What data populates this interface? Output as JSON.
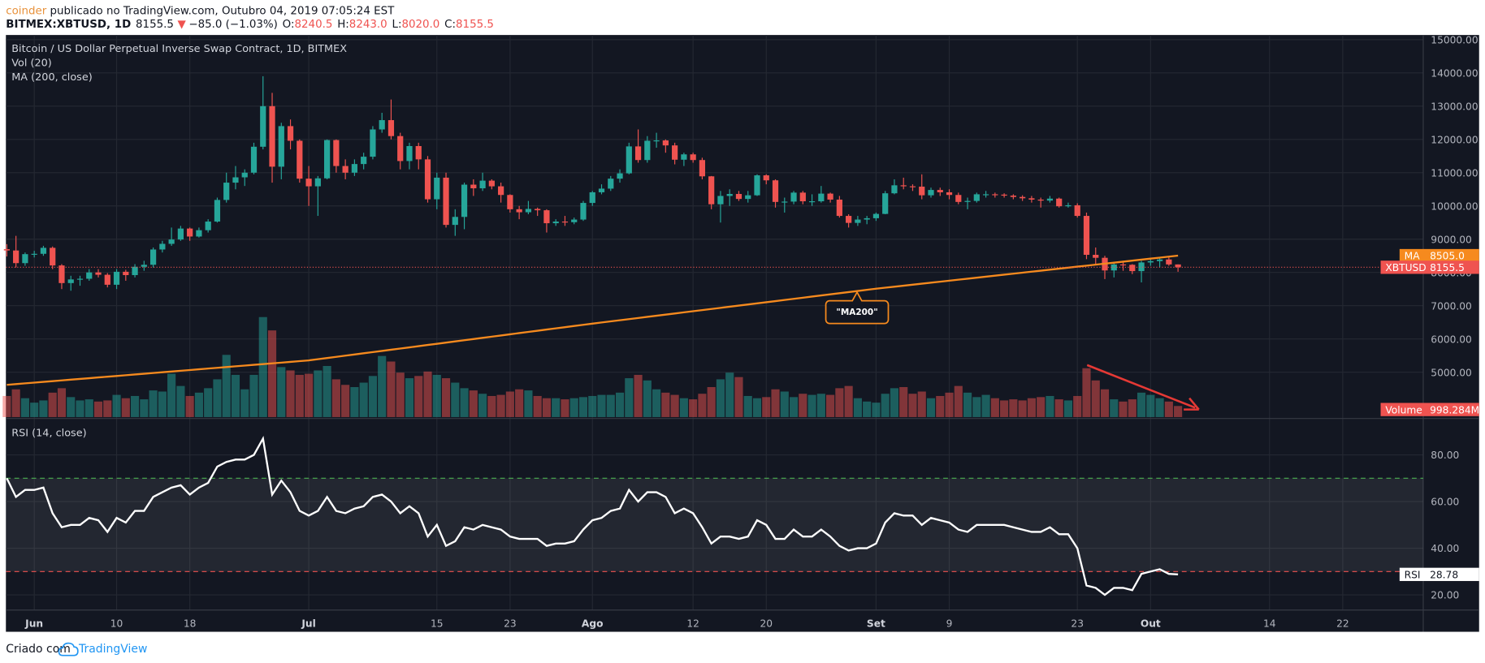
{
  "header": {
    "author": "coinder",
    "published": " publicado no TradingView.com, Outubro 04, 2019 07:05:24 EST",
    "symbol": "BITMEX:XBTUSD, 1D",
    "last": "8155.5",
    "change_arrow": "▼",
    "change": "−85.0 (−1.03%)",
    "ohlc": [
      {
        "key": "O:",
        "value": "8240.5"
      },
      {
        "key": "H:",
        "value": "8243.0"
      },
      {
        "key": "L:",
        "value": "8020.0"
      },
      {
        "key": "C:",
        "value": "8155.5"
      }
    ]
  },
  "footer": {
    "text": "Criado com",
    "brand": "TradingView"
  },
  "chart_data": {
    "type": "candlestick",
    "title": "Bitcoin / US Dollar Perpetual Inverse Swap Contract, 1D, BITMEX",
    "up_color": "#26a69a",
    "down_color": "#ef5350",
    "grid": true,
    "last_name": "XBTUSD",
    "last_label": "8155.5",
    "annotation": "\"MA200\"",
    "xlim": [
      -0.1,
      154.8
    ],
    "xticks": [
      {
        "value": 3,
        "label": "Jun"
      },
      {
        "value": 12,
        "label": "10"
      },
      {
        "value": 20,
        "label": "18"
      },
      {
        "value": 33,
        "label": "Jul"
      },
      {
        "value": 47,
        "label": "15"
      },
      {
        "value": 55,
        "label": "23"
      },
      {
        "value": 64,
        "label": "Ago"
      },
      {
        "value": 75,
        "label": "12"
      },
      {
        "value": 83,
        "label": "20"
      },
      {
        "value": 95,
        "label": "Set"
      },
      {
        "value": 103,
        "label": "9"
      },
      {
        "value": 117,
        "label": "23"
      },
      {
        "value": 125,
        "label": "Out"
      },
      {
        "value": 138,
        "label": "14"
      },
      {
        "value": 146,
        "label": "22"
      }
    ],
    "ylim": [
      3650,
      15140
    ],
    "yticks": [
      {
        "value": 15000,
        "label": "15000.00"
      },
      {
        "value": 14000,
        "label": "14000.00"
      },
      {
        "value": 13000,
        "label": "13000.00"
      },
      {
        "value": 12000,
        "label": "12000.00"
      },
      {
        "value": 11000,
        "label": "11000.00"
      },
      {
        "value": 10000,
        "label": "10000.00"
      },
      {
        "value": 9000,
        "label": "9000.00"
      },
      {
        "value": 8000,
        "label": "8000.00"
      },
      {
        "value": 7000,
        "label": "7000.00"
      },
      {
        "value": 6000,
        "label": "6000.00"
      },
      {
        "value": 5000,
        "label": "5000.00"
      }
    ],
    "candles": [
      [
        8700,
        8850,
        8480,
        8660
      ],
      [
        8660,
        9100,
        8150,
        8280
      ],
      [
        8280,
        8600,
        8200,
        8550
      ],
      [
        8550,
        8650,
        8450,
        8560
      ],
      [
        8560,
        8800,
        8500,
        8740
      ],
      [
        8740,
        8780,
        8100,
        8210
      ],
      [
        8210,
        8250,
        7500,
        7680
      ],
      [
        7680,
        7900,
        7450,
        7790
      ],
      [
        7790,
        7900,
        7600,
        7810
      ],
      [
        7810,
        8100,
        7750,
        8000
      ],
      [
        8000,
        8100,
        7850,
        7930
      ],
      [
        7930,
        7980,
        7550,
        7630
      ],
      [
        7630,
        8100,
        7500,
        8020
      ],
      [
        8020,
        8080,
        7750,
        7920
      ],
      [
        7920,
        8250,
        7850,
        8170
      ],
      [
        8170,
        8350,
        8050,
        8230
      ],
      [
        8230,
        8750,
        8150,
        8690
      ],
      [
        8690,
        8950,
        8600,
        8860
      ],
      [
        8860,
        9350,
        8800,
        8990
      ],
      [
        8990,
        9400,
        8950,
        9320
      ],
      [
        9320,
        9350,
        8950,
        9080
      ],
      [
        9080,
        9350,
        9050,
        9270
      ],
      [
        9270,
        9600,
        9200,
        9530
      ],
      [
        9530,
        10250,
        9500,
        10180
      ],
      [
        10180,
        11000,
        10100,
        10700
      ],
      [
        10700,
        11200,
        10500,
        10860
      ],
      [
        10860,
        11100,
        10600,
        11000
      ],
      [
        11000,
        11900,
        10950,
        11780
      ],
      [
        11780,
        13900,
        11700,
        13000
      ],
      [
        13000,
        13400,
        10700,
        11180
      ],
      [
        11180,
        12500,
        10800,
        12400
      ],
      [
        12400,
        12600,
        11700,
        11960
      ],
      [
        11960,
        12000,
        10700,
        10820
      ],
      [
        10820,
        11200,
        10000,
        10590
      ],
      [
        10590,
        10900,
        9700,
        10830
      ],
      [
        10830,
        12000,
        10800,
        11980
      ],
      [
        11980,
        12000,
        11000,
        11200
      ],
      [
        11200,
        11400,
        10800,
        11000
      ],
      [
        11000,
        11400,
        10900,
        11260
      ],
      [
        11260,
        11600,
        11100,
        11480
      ],
      [
        11480,
        12400,
        11400,
        12300
      ],
      [
        12300,
        12800,
        12200,
        12580
      ],
      [
        12580,
        13200,
        12000,
        12100
      ],
      [
        12100,
        12200,
        11100,
        11350
      ],
      [
        11350,
        11900,
        11100,
        11800
      ],
      [
        11800,
        11900,
        11100,
        11400
      ],
      [
        11400,
        11500,
        10100,
        10200
      ],
      [
        10200,
        11000,
        9900,
        10850
      ],
      [
        10850,
        11000,
        9350,
        9430
      ],
      [
        9430,
        9900,
        9100,
        9670
      ],
      [
        9670,
        10700,
        9300,
        10640
      ],
      [
        10640,
        10800,
        10300,
        10530
      ],
      [
        10530,
        11000,
        10450,
        10760
      ],
      [
        10760,
        10800,
        10500,
        10590
      ],
      [
        10590,
        10700,
        10100,
        10330
      ],
      [
        10330,
        10350,
        9800,
        9900
      ],
      [
        9900,
        10000,
        9600,
        9810
      ],
      [
        9810,
        10150,
        9750,
        9910
      ],
      [
        9910,
        9950,
        9700,
        9870
      ],
      [
        9870,
        9900,
        9200,
        9480
      ],
      [
        9480,
        9600,
        9400,
        9530
      ],
      [
        9530,
        9700,
        9400,
        9510
      ],
      [
        9510,
        9650,
        9450,
        9590
      ],
      [
        9590,
        10150,
        9550,
        10090
      ],
      [
        10090,
        10450,
        10000,
        10410
      ],
      [
        10410,
        10650,
        10350,
        10520
      ],
      [
        10520,
        10900,
        10450,
        10820
      ],
      [
        10820,
        11100,
        10700,
        10980
      ],
      [
        10980,
        11900,
        10950,
        11790
      ],
      [
        11790,
        12300,
        11300,
        11380
      ],
      [
        11380,
        12100,
        11300,
        11960
      ],
      [
        11960,
        12200,
        11750,
        11970
      ],
      [
        11970,
        12000,
        11600,
        11820
      ],
      [
        11820,
        11900,
        11250,
        11390
      ],
      [
        11390,
        11600,
        11200,
        11550
      ],
      [
        11550,
        11600,
        11300,
        11380
      ],
      [
        11380,
        11450,
        10800,
        10890
      ],
      [
        10890,
        10900,
        9900,
        10050
      ],
      [
        10050,
        10450,
        9500,
        10300
      ],
      [
        10300,
        10500,
        10000,
        10360
      ],
      [
        10360,
        10450,
        10150,
        10210
      ],
      [
        10210,
        10450,
        10100,
        10320
      ],
      [
        10320,
        10950,
        10300,
        10920
      ],
      [
        10920,
        10950,
        10650,
        10770
      ],
      [
        10770,
        10800,
        9950,
        10120
      ],
      [
        10120,
        10250,
        9800,
        10130
      ],
      [
        10130,
        10450,
        10050,
        10400
      ],
      [
        10400,
        10450,
        10050,
        10140
      ],
      [
        10140,
        10350,
        10000,
        10140
      ],
      [
        10140,
        10600,
        10100,
        10370
      ],
      [
        10370,
        10400,
        10100,
        10190
      ],
      [
        10190,
        10300,
        9650,
        9700
      ],
      [
        9700,
        9750,
        9350,
        9490
      ],
      [
        9490,
        9700,
        9400,
        9590
      ],
      [
        9590,
        9700,
        9450,
        9630
      ],
      [
        9630,
        9800,
        9550,
        9760
      ],
      [
        9760,
        10450,
        9750,
        10380
      ],
      [
        10380,
        10800,
        10350,
        10620
      ],
      [
        10620,
        10850,
        10500,
        10590
      ],
      [
        10590,
        10650,
        10450,
        10580
      ],
      [
        10580,
        10950,
        10200,
        10320
      ],
      [
        10320,
        10550,
        10250,
        10480
      ],
      [
        10480,
        10550,
        10300,
        10410
      ],
      [
        10410,
        10500,
        10200,
        10330
      ],
      [
        10330,
        10400,
        10050,
        10120
      ],
      [
        10120,
        10250,
        9900,
        10150
      ],
      [
        10150,
        10400,
        10100,
        10350
      ],
      [
        10350,
        10450,
        10250,
        10350
      ],
      [
        10350,
        10400,
        10250,
        10340
      ],
      [
        10340,
        10380,
        10250,
        10310
      ],
      [
        10310,
        10350,
        10200,
        10270
      ],
      [
        10270,
        10320,
        10150,
        10230
      ],
      [
        10230,
        10300,
        10100,
        10190
      ],
      [
        10190,
        10250,
        9950,
        10160
      ],
      [
        10160,
        10300,
        10100,
        10220
      ],
      [
        10220,
        10250,
        9950,
        9990
      ],
      [
        9990,
        10100,
        9950,
        10020
      ],
      [
        10020,
        10080,
        9650,
        9700
      ],
      [
        9700,
        9800,
        8400,
        8530
      ],
      [
        8530,
        8750,
        8250,
        8440
      ],
      [
        8440,
        8500,
        7800,
        8060
      ],
      [
        8060,
        8300,
        7850,
        8240
      ],
      [
        8240,
        8350,
        8050,
        8230
      ],
      [
        8230,
        8250,
        7950,
        8040
      ],
      [
        8040,
        8350,
        7700,
        8300
      ],
      [
        8300,
        8400,
        8200,
        8340
      ],
      [
        8340,
        8450,
        8150,
        8390
      ],
      [
        8390,
        8450,
        8200,
        8240.5
      ],
      [
        8240.5,
        8243,
        8020,
        8155.5
      ]
    ],
    "volume": {
      "legend": "Vol (20)",
      "name": "Volume",
      "last_label": "998.284M",
      "vlim": [
        0,
        12000
      ],
      "values": [
        1900,
        2500,
        1700,
        1300,
        1500,
        2200,
        2600,
        1800,
        1500,
        1600,
        1400,
        1500,
        2000,
        1700,
        1900,
        1600,
        2400,
        2300,
        3900,
        2800,
        1900,
        2200,
        2600,
        3400,
        5600,
        3800,
        2500,
        3800,
        9000,
        7800,
        4500,
        4200,
        3800,
        3900,
        4200,
        4600,
        3400,
        2900,
        2700,
        3100,
        3700,
        5500,
        5000,
        4000,
        3500,
        3700,
        4100,
        3800,
        3500,
        3100,
        2600,
        2400,
        2100,
        1900,
        2000,
        2300,
        2500,
        2400,
        1900,
        1700,
        1700,
        1600,
        1700,
        1800,
        1900,
        2000,
        2000,
        2200,
        3500,
        3800,
        3300,
        2500,
        2200,
        2000,
        1700,
        1600,
        2100,
        2700,
        3400,
        4000,
        3600,
        1900,
        1700,
        1800,
        2500,
        2300,
        1800,
        2100,
        2000,
        2100,
        2000,
        2600,
        2800,
        1700,
        1400,
        1300,
        2100,
        2600,
        2700,
        2100,
        2300,
        1700,
        1900,
        2200,
        2800,
        2200,
        1800,
        2000,
        1700,
        1500,
        1600,
        1500,
        1700,
        1800,
        1900,
        1600,
        1500,
        1900,
        4400,
        3300,
        2500,
        1600,
        1400,
        1600,
        2200,
        2000,
        1700,
        1400,
        998.284
      ]
    },
    "ma": {
      "legend": "MA (200, close)",
      "name": "MA",
      "color": "#f68a1e",
      "last_label": "8505.0",
      "values": [
        4620,
        4642,
        4665,
        4687,
        4709,
        4731,
        4754,
        4776,
        4798,
        4820,
        4843,
        4865,
        4887,
        4909,
        4932,
        4954,
        4976,
        4999,
        5021,
        5043,
        5065,
        5088,
        5110,
        5132,
        5154,
        5177,
        5199,
        5221,
        5244,
        5266,
        5288,
        5310,
        5333,
        5355,
        5391,
        5426,
        5462,
        5498,
        5533,
        5569,
        5605,
        5640,
        5676,
        5712,
        5747,
        5783,
        5819,
        5854,
        5890,
        5926,
        5962,
        5997,
        6033,
        6069,
        6104,
        6140,
        6176,
        6211,
        6247,
        6283,
        6318,
        6354,
        6390,
        6425,
        6461,
        6495,
        6529,
        6563,
        6596,
        6630,
        6664,
        6698,
        6732,
        6766,
        6800,
        6834,
        6867,
        6901,
        6935,
        6969,
        7003,
        7037,
        7071,
        7104,
        7138,
        7172,
        7206,
        7240,
        7274,
        7308,
        7342,
        7375,
        7409,
        7443,
        7477,
        7511,
        7541,
        7571,
        7601,
        7632,
        7662,
        7692,
        7722,
        7752,
        7782,
        7812,
        7842,
        7873,
        7903,
        7933,
        7963,
        7993,
        8023,
        8053,
        8083,
        8114,
        8144,
        8174,
        8204,
        8234,
        8264,
        8294,
        8324,
        8355,
        8385,
        8415,
        8445,
        8475,
        8505
      ]
    },
    "rsi": {
      "legend": "RSI (14, close)",
      "name": "RSI",
      "color": "#ffffff",
      "last_label": "28.78",
      "upper": 70,
      "lower": 30,
      "ylim": [
        13.5,
        95
      ],
      "yticks": [
        {
          "value": 80,
          "label": "80.00"
        },
        {
          "value": 60,
          "label": "60.00"
        },
        {
          "value": 40,
          "label": "40.00"
        },
        {
          "value": 20,
          "label": "20.00"
        }
      ],
      "values": [
        70,
        62,
        65,
        65,
        66,
        55,
        49,
        50,
        50,
        53,
        52,
        47,
        53,
        51,
        56,
        56,
        62,
        64,
        66,
        67,
        63,
        66,
        68,
        75,
        77,
        78,
        78,
        80,
        87,
        63,
        69,
        64,
        56,
        54,
        56,
        62,
        56,
        55,
        57,
        58,
        62,
        63,
        60,
        55,
        58,
        55,
        45,
        50,
        41,
        43,
        49,
        48,
        50,
        49,
        48,
        45,
        44,
        44,
        44,
        41,
        42,
        42,
        43,
        48,
        52,
        53,
        56,
        57,
        65,
        60,
        64,
        64,
        62,
        55,
        57,
        55,
        49,
        42,
        45,
        45,
        44,
        45,
        52,
        50,
        44,
        44,
        48,
        45,
        45,
        48,
        45,
        41,
        39,
        40,
        40,
        42,
        51,
        55,
        54,
        54,
        50,
        53,
        52,
        51,
        48,
        47,
        50,
        50,
        50,
        50,
        49,
        48,
        47,
        47,
        49,
        46,
        46,
        40,
        24,
        23,
        20,
        23,
        23,
        22,
        29,
        30,
        31,
        29,
        28.78
      ]
    }
  }
}
